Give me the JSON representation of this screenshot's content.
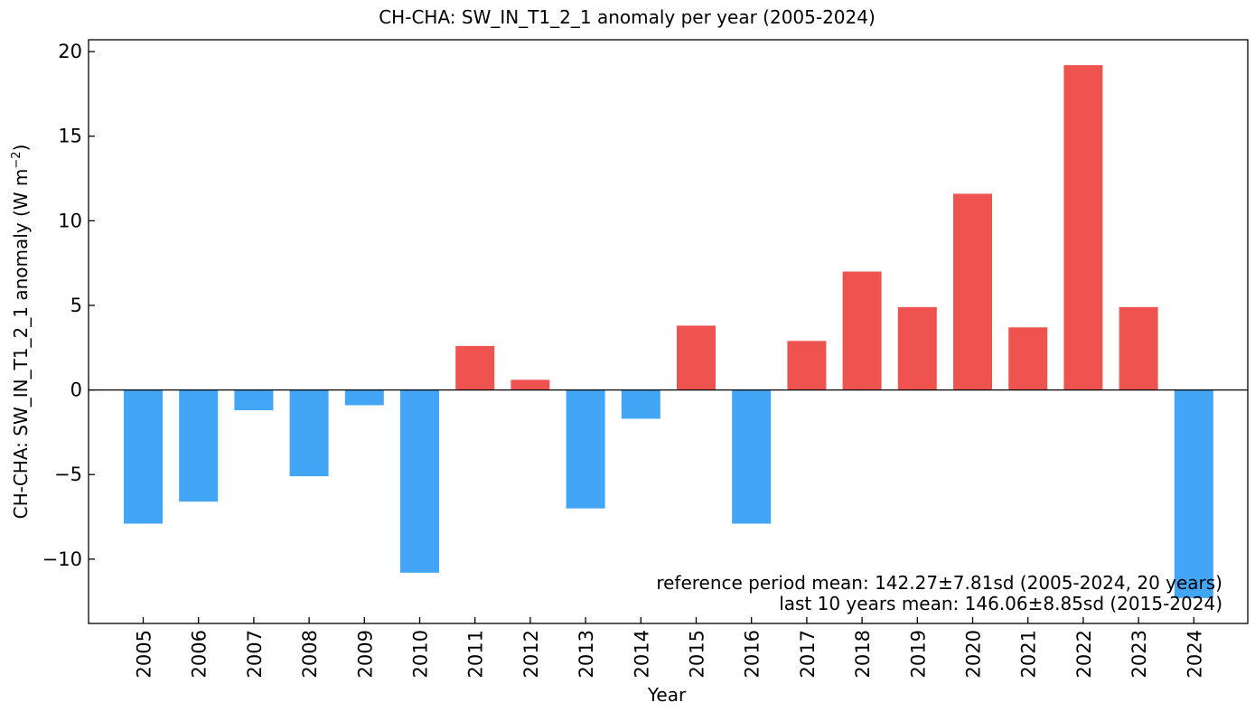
{
  "chart_data": {
    "type": "bar",
    "title": "CH-CHA: SW_IN_T1_2_1 anomaly per year (2005-2024)",
    "xlabel": "Year",
    "ylabel": "CH-CHA: SW_IN_T1_2_1 anomaly  (W m",
    "ylabel_superscript": "−2",
    "ylabel_suffix": ")",
    "categories": [
      "2005",
      "2006",
      "2007",
      "2008",
      "2009",
      "2010",
      "2011",
      "2012",
      "2013",
      "2014",
      "2015",
      "2016",
      "2017",
      "2018",
      "2019",
      "2020",
      "2021",
      "2022",
      "2023",
      "2024"
    ],
    "values": [
      -7.9,
      -6.6,
      -1.2,
      -5.1,
      -0.9,
      -10.8,
      2.6,
      0.6,
      -7.0,
      -1.7,
      3.8,
      -7.9,
      2.9,
      7.0,
      4.9,
      11.6,
      3.7,
      19.2,
      4.9,
      -12.3
    ],
    "ylim": [
      -13.8,
      20.7
    ],
    "yticks": [
      -10,
      -5,
      0,
      5,
      10,
      15,
      20
    ],
    "ytick_labels": [
      "−10",
      "−5",
      "0",
      "5",
      "10",
      "15",
      "20"
    ],
    "positive_color": "#EF5350",
    "negative_color": "#42A5F5",
    "annotations": {
      "reference": "reference period mean: 142.27±7.81sd (2005-2024, 20 years)",
      "last10": "last 10 years mean: 146.06±8.85sd (2015-2024)"
    },
    "annotation_color": "#333333"
  }
}
